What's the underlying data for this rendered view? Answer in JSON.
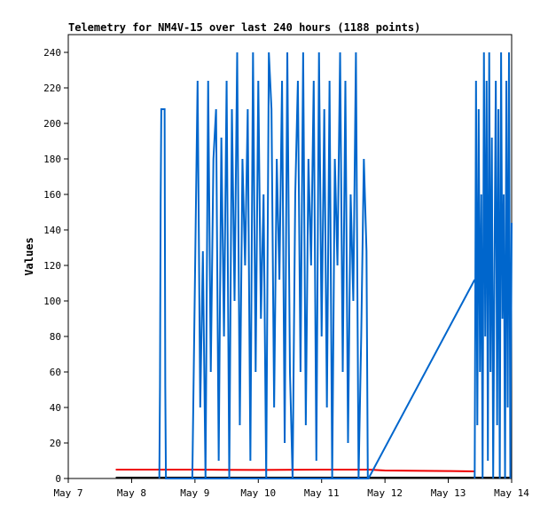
{
  "chart_data": {
    "type": "line",
    "title": "Telemetry for NM4V-15 over last 240 hours (1188 points)",
    "xlabel": "",
    "ylabel": "Values",
    "x_ticks": [
      "May 7",
      "May 8",
      "May 9",
      "May 10",
      "May 11",
      "May 12",
      "May 13",
      "May 14"
    ],
    "xlim": [
      "May 7",
      "May 14"
    ],
    "ylim": [
      0,
      250
    ],
    "y_ticks": [
      0,
      20,
      40,
      60,
      80,
      100,
      120,
      140,
      160,
      180,
      200,
      220,
      240
    ],
    "grid": false,
    "legend": "none",
    "series": [
      {
        "color": "#ee0000",
        "x": [
          "May 7 18:00",
          "May 9 00:00",
          "May 10 00:00",
          "May 11 00:00",
          "May 11 18:00",
          "May 12 00:00",
          "May 13 00:00",
          "May 13 10:00"
        ],
        "values": [
          5,
          5,
          4.8,
          5,
          5,
          4.5,
          4.2,
          4
        ]
      },
      {
        "color": "#000000",
        "x": [
          "May 7 18:00",
          "May 11 12:00",
          "May 11 18:00",
          "May 12 00:00",
          "May 13 10:00",
          "May 14 00:00"
        ],
        "values": [
          0.5,
          0.5,
          0.5,
          0.5,
          0.5,
          0.5
        ]
      },
      {
        "color": "#0066cc",
        "x": [
          "May 8 10:30",
          "May 8 10:45",
          "May 8 11:00",
          "May 8 11:15",
          "May 8 12:30",
          "May 8 12:45",
          "May 8 13:00",
          "May 11 17:45",
          "May 13 10:00"
        ],
        "values": [
          0,
          52,
          156,
          208,
          208,
          52,
          0,
          0,
          112
        ]
      },
      {
        "color": "#0066cc",
        "x": [
          "May 8 23:00",
          "May 9 00:00",
          "May 9 01:00",
          "May 9 02:00",
          "May 9 03:00",
          "May 9 04:00",
          "May 9 05:00",
          "May 9 06:00",
          "May 9 07:00",
          "May 9 08:00",
          "May 9 09:00",
          "May 9 10:00",
          "May 9 11:00",
          "May 9 12:00",
          "May 9 13:00",
          "May 9 14:00",
          "May 9 15:00",
          "May 9 16:00",
          "May 9 17:00",
          "May 9 18:00",
          "May 9 19:00",
          "May 9 20:00",
          "May 9 21:00",
          "May 9 22:00",
          "May 9 23:00",
          "May 10 00:00",
          "May 10 01:00",
          "May 10 02:00",
          "May 10 03:00",
          "May 10 04:00",
          "May 10 05:00",
          "May 10 06:00",
          "May 10 07:00",
          "May 10 08:00",
          "May 10 09:00",
          "May 10 10:00",
          "May 10 11:00",
          "May 10 12:00",
          "May 10 13:00",
          "May 10 14:00",
          "May 10 15:00",
          "May 10 16:00",
          "May 10 17:00",
          "May 10 18:00",
          "May 10 19:00",
          "May 10 20:00",
          "May 10 21:00",
          "May 10 22:00",
          "May 10 23:00",
          "May 11 00:00",
          "May 11 01:00",
          "May 11 02:00",
          "May 11 03:00",
          "May 11 04:00",
          "May 11 05:00",
          "May 11 06:00",
          "May 11 07:00",
          "May 11 08:00",
          "May 11 09:00",
          "May 11 10:00",
          "May 11 11:00",
          "May 11 12:00",
          "May 11 13:00",
          "May 11 14:00",
          "May 11 15:00",
          "May 11 16:00",
          "May 11 17:00",
          "May 11 17:30"
        ],
        "values": [
          0,
          112,
          224,
          40,
          128,
          0,
          224,
          60,
          180,
          208,
          10,
          192,
          80,
          224,
          0,
          208,
          100,
          240,
          30,
          180,
          120,
          208,
          10,
          240,
          60,
          224,
          90,
          160,
          0,
          240,
          208,
          40,
          180,
          112,
          224,
          20,
          240,
          60,
          0,
          160,
          224,
          60,
          240,
          30,
          180,
          120,
          224,
          10,
          240,
          80,
          208,
          40,
          224,
          0,
          180,
          120,
          240,
          60,
          224,
          20,
          160,
          100,
          240,
          0,
          80,
          180,
          128,
          0
        ]
      },
      {
        "color": "#0066cc",
        "x": [
          "May 13 10:00",
          "May 13 10:30",
          "May 13 11:00",
          "May 13 11:30",
          "May 13 12:00",
          "May 13 12:30",
          "May 13 13:00",
          "May 13 13:30",
          "May 13 14:00",
          "May 13 14:30",
          "May 13 15:00",
          "May 13 15:30",
          "May 13 16:00",
          "May 13 16:30",
          "May 13 17:00",
          "May 13 17:30",
          "May 13 18:00",
          "May 13 18:30",
          "May 13 19:00",
          "May 13 19:30",
          "May 13 20:00",
          "May 13 20:30",
          "May 13 21:00",
          "May 13 21:30",
          "May 13 22:00",
          "May 13 22:30",
          "May 13 23:00",
          "May 13 23:30",
          "May 14 00:00"
        ],
        "values": [
          0,
          224,
          30,
          208,
          60,
          160,
          0,
          240,
          80,
          224,
          10,
          240,
          60,
          192,
          0,
          120,
          224,
          30,
          208,
          0,
          240,
          90,
          160,
          0,
          224,
          40,
          240,
          0,
          144
        ]
      }
    ]
  }
}
